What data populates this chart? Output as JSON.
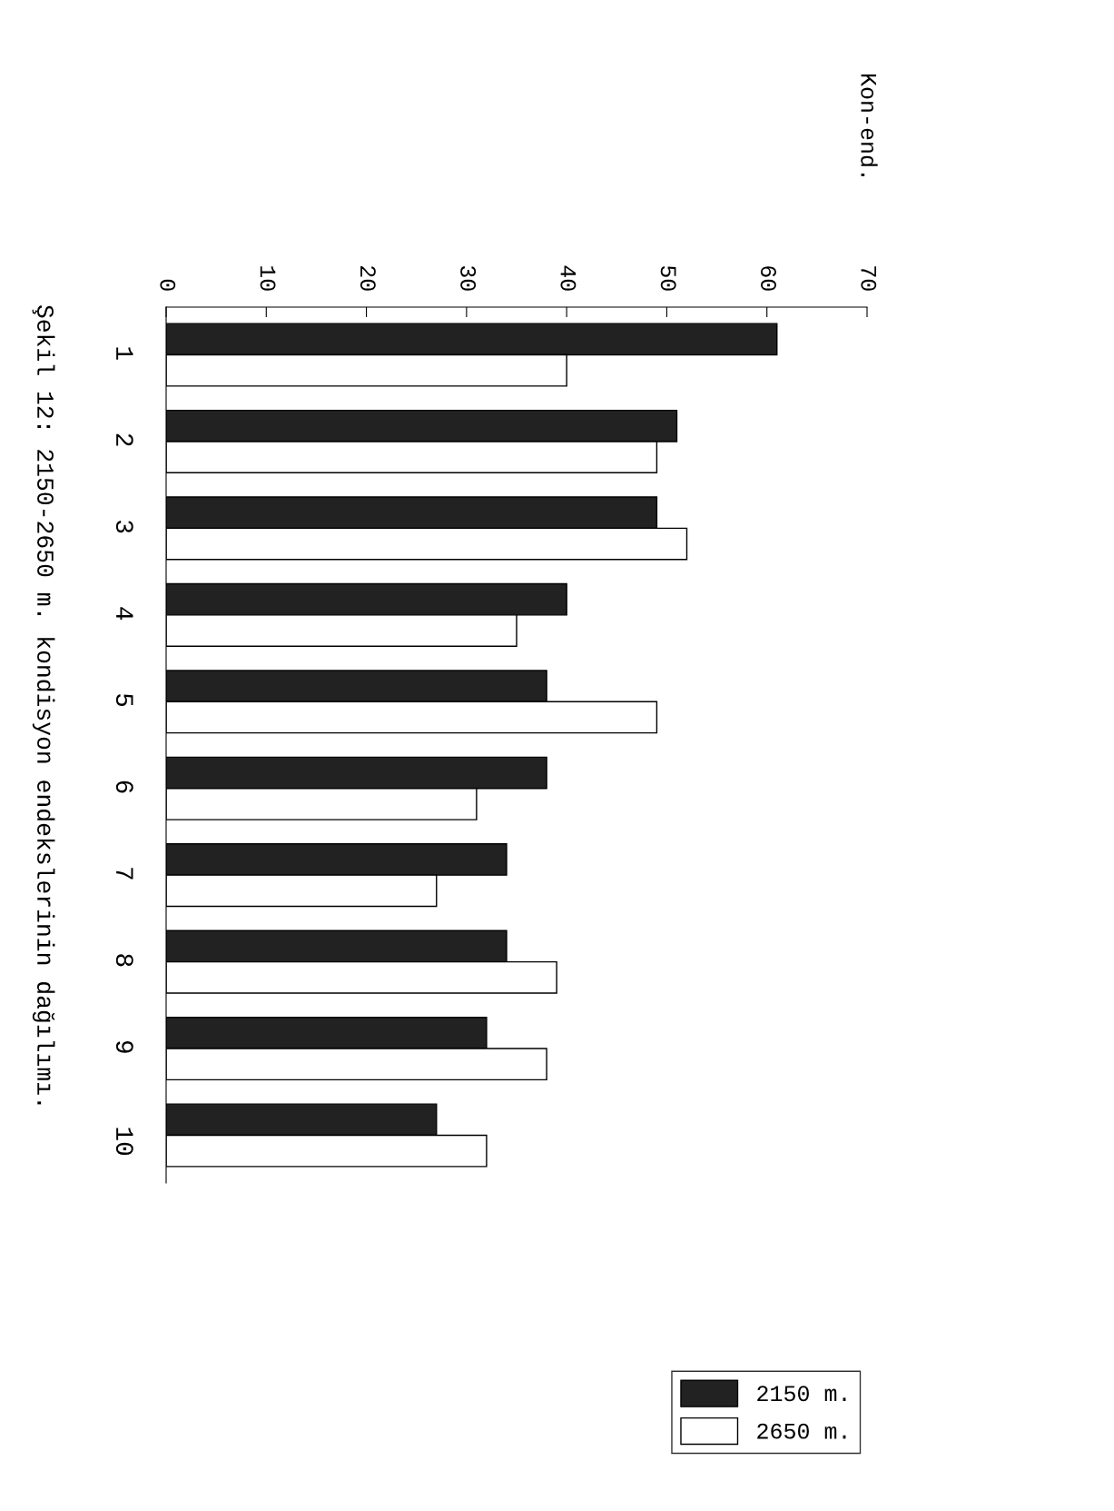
{
  "chart_data": {
    "type": "bar",
    "orientation": "horizontal",
    "categories": [
      "1",
      "2",
      "3",
      "4",
      "5",
      "6",
      "7",
      "8",
      "9",
      "10"
    ],
    "series": [
      {
        "name": "2150 m.",
        "color": "#222222",
        "values": [
          61,
          51,
          49,
          40,
          38,
          38,
          34,
          34,
          32,
          27
        ]
      },
      {
        "name": "2650 m.",
        "color": "#ffffff",
        "values": [
          40,
          49,
          52,
          35,
          49,
          31,
          27,
          39,
          38,
          32
        ]
      }
    ],
    "xlim": [
      0,
      70
    ],
    "xticks": [
      0,
      10,
      20,
      30,
      40,
      50,
      60,
      70
    ],
    "grid": false,
    "legend": "bottom right",
    "annotations": [
      "Şekil 12: 2150-2650 m. kondisyon endekslerinin dağılımı.",
      "Kon-end."
    ]
  }
}
